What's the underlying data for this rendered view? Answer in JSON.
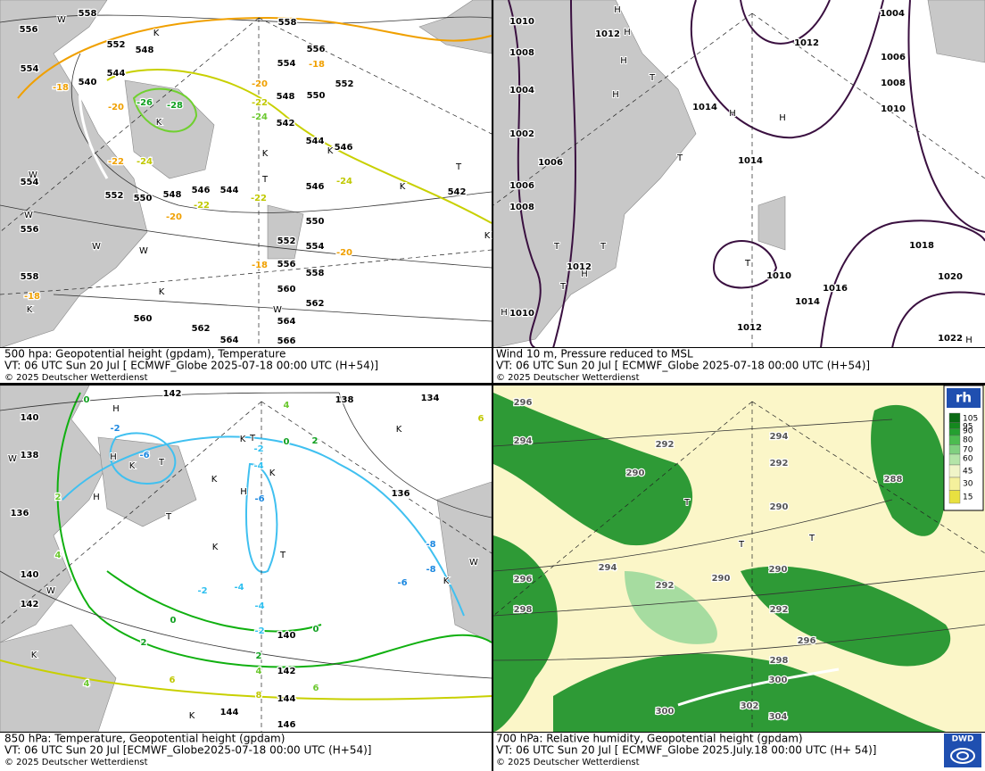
{
  "panels": [
    {
      "caption": {
        "line1": "500 hpa: Geopotential height (gpdam), Temperature",
        "line2": "VT: 06 UTC Sun  20 Jul [ ECMWF_Globe 2025-07-18 00:00 UTC  (H+54)]",
        "line3": "© 2025 Deutscher Wetterdienst"
      },
      "labels": [
        "558",
        "556",
        "552",
        "548",
        "544",
        "540",
        "554",
        "558",
        "556",
        "554",
        "552",
        "550",
        "548",
        "542",
        "544",
        "546",
        "542",
        "546",
        "544",
        "546",
        "548",
        "550",
        "552",
        "550",
        "552",
        "554",
        "556",
        "558",
        "560",
        "562",
        "564",
        "566",
        "560",
        "562",
        "564",
        "554",
        "556",
        "558",
        "-18",
        "-18",
        "-20",
        "-20",
        "-22",
        "-20",
        "-18",
        "-20",
        "-18",
        "-22",
        "-24",
        "-24",
        "-22",
        "-22",
        "-24",
        "-26",
        "-28",
        "K",
        "K",
        "K",
        "T",
        "K",
        "T",
        "K",
        "W",
        "W",
        "W",
        "W",
        "W",
        "K",
        "K",
        "W",
        "K"
      ]
    },
    {
      "caption": {
        "line1": "Wind 10 m, Pressure reduced to MSL",
        "line2": "VT: 06 UTC Sun  20 Jul [ ECMWF_Globe 2025-07-18 00:00 UTC (H+54)]",
        "line3": "© 2025 Deutscher Wetterdienst"
      },
      "labels": [
        "1010",
        "1012",
        "1008",
        "1004",
        "1002",
        "1006",
        "1006",
        "1008",
        "1014",
        "1014",
        "1004",
        "1012",
        "1006",
        "1008",
        "1010",
        "1018",
        "1020",
        "1010",
        "1016",
        "1014",
        "1012",
        "1010",
        "1012",
        "1022",
        "H",
        "H",
        "H",
        "H",
        "T",
        "H",
        "H",
        "T",
        "T",
        "T",
        "H",
        "T",
        "T",
        "H",
        "H"
      ]
    },
    {
      "caption": {
        "line1": "850 hPa:  Temperature, Geopotential height (gpdam)",
        "line2": "VT: 06 UTC Sun  20 Jul [ECMWF_Globe2025-07-18 00:00 UTC  (H+54)]",
        "line3": "© 2025 Deutscher Wetterdienst"
      },
      "labels": [
        "142",
        "140",
        "138",
        "136",
        "140",
        "142",
        "138",
        "134",
        "136",
        "140",
        "142",
        "144",
        "146",
        "144",
        "0",
        "2",
        "4",
        "2",
        "0",
        "0",
        "2",
        "4",
        "6",
        "6",
        "2",
        "0",
        "4",
        "6",
        "4",
        "8",
        "-2",
        "-6",
        "-2",
        "-4",
        "-6",
        "-2",
        "-4",
        "-4",
        "-2",
        "-6",
        "-8",
        "-8",
        "H",
        "H",
        "K",
        "T",
        "H",
        "T",
        "K",
        "H",
        "K",
        "T",
        "K",
        "K",
        "T",
        "W",
        "W",
        "K",
        "K",
        "K",
        "K",
        "W"
      ]
    },
    {
      "caption": {
        "line1": "700 hPa:  Relative humidity, Geopotential height (gpdam)",
        "line2": "VT: 06 UTC Sun  20 Jul [ ECMWF_Globe  2025.July.18 00:00 UTC  (H+ 54)]",
        "line3": "© 2025 Deutscher Wetterdienst"
      },
      "labels": [
        "296",
        "294",
        "292",
        "294",
        "292",
        "290",
        "288",
        "294",
        "292",
        "290",
        "290",
        "292",
        "296",
        "298",
        "296",
        "298",
        "300",
        "300",
        "302",
        "304",
        "290",
        "T",
        "T",
        "T"
      ]
    }
  ],
  "legend": {
    "title": "rh",
    "values": [
      "105",
      "95",
      "90",
      "80",
      "70",
      "60",
      "45",
      "30",
      "15"
    ]
  },
  "logo": "DWD"
}
